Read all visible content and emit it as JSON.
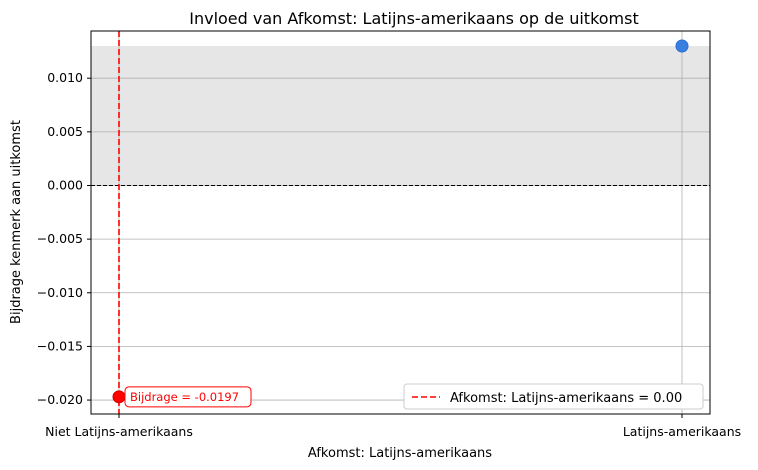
{
  "chart_data": {
    "type": "scatter",
    "title": "Invloed van Afkomst: Latijns-amerikaans op de uitkomst",
    "xlabel": "Afkomst: Latijns-amerikaans",
    "ylabel": "Bijdrage kenmerk aan uitkomst",
    "categories": [
      "Niet Latijns-amerikaans",
      "Latijns-amerikaans"
    ],
    "values": [
      -0.0197,
      0.013
    ],
    "y_ticks": [
      "−0.020",
      "−0.015",
      "−0.010",
      "−0.005",
      "0.000",
      "0.005",
      "0.010"
    ],
    "y_tick_values": [
      -0.02,
      -0.015,
      -0.01,
      -0.005,
      0.0,
      0.005,
      0.01
    ],
    "ylim": [
      -0.0213,
      0.0144
    ],
    "grid": true,
    "shaded_band": [
      0.0,
      0.013
    ],
    "zero_line": 0.0,
    "highlight": {
      "category_index": 0,
      "value": -0.0197,
      "annotation": "Bijdrage = -0.0197",
      "color": "#ff0000"
    },
    "vline": {
      "category_index": 0,
      "legend_label": "Afkomst: Latijns-amerikaans = 0.00",
      "color": "#ff0000"
    },
    "point_color": "#3a7fe0",
    "legend_position": "lower-right"
  }
}
